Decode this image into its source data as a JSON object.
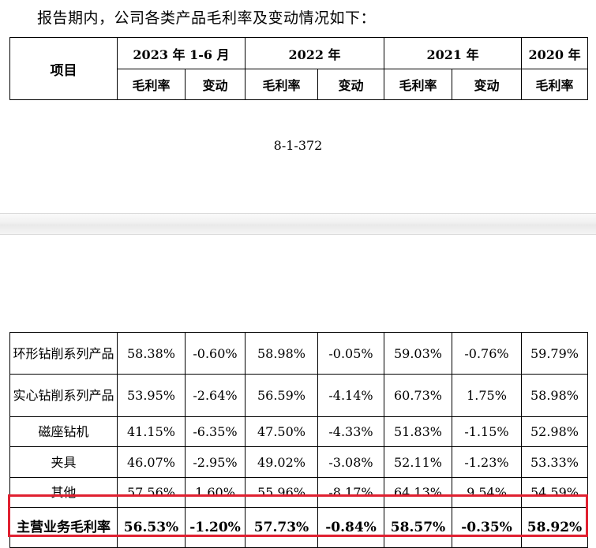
{
  "intro_text": "报告期内，公司各类产品毛利率及变动情况如下：",
  "header": {
    "item_label": "项目",
    "periods": [
      "2023 年 1-6 月",
      "2022 年",
      "2021 年",
      "2020 年"
    ],
    "gross_margin_label": "毛利率",
    "change_label": "变动"
  },
  "page_number": "8-1-372",
  "rows": [
    {
      "name": "环形钻削系列产品",
      "values": [
        "58.38%",
        "-0.60%",
        "58.98%",
        "-0.05%",
        "59.03%",
        "-0.76%",
        "59.79%"
      ]
    },
    {
      "name": "实心钻削系列产品",
      "values": [
        "53.95%",
        "-2.64%",
        "56.59%",
        "-4.14%",
        "60.73%",
        "1.75%",
        "58.98%"
      ]
    },
    {
      "name": "磁座钻机",
      "values": [
        "41.15%",
        "-6.35%",
        "47.50%",
        "-4.33%",
        "51.83%",
        "-1.15%",
        "52.98%"
      ]
    },
    {
      "name": "夹具",
      "values": [
        "46.07%",
        "-2.95%",
        "49.02%",
        "-3.08%",
        "52.11%",
        "-1.23%",
        "53.33%"
      ]
    },
    {
      "name": "其他",
      "values": [
        "57.56%",
        "1.60%",
        "55.96%",
        "-8.17%",
        "64.13%",
        "9.54%",
        "54.59%"
      ]
    }
  ],
  "summary_row": {
    "name": "主营业务毛利率",
    "values": [
      "56.53%",
      "-1.20%",
      "57.73%",
      "-0.84%",
      "58.57%",
      "-0.35%",
      "58.92%"
    ]
  },
  "highlight_color": "#e02030"
}
